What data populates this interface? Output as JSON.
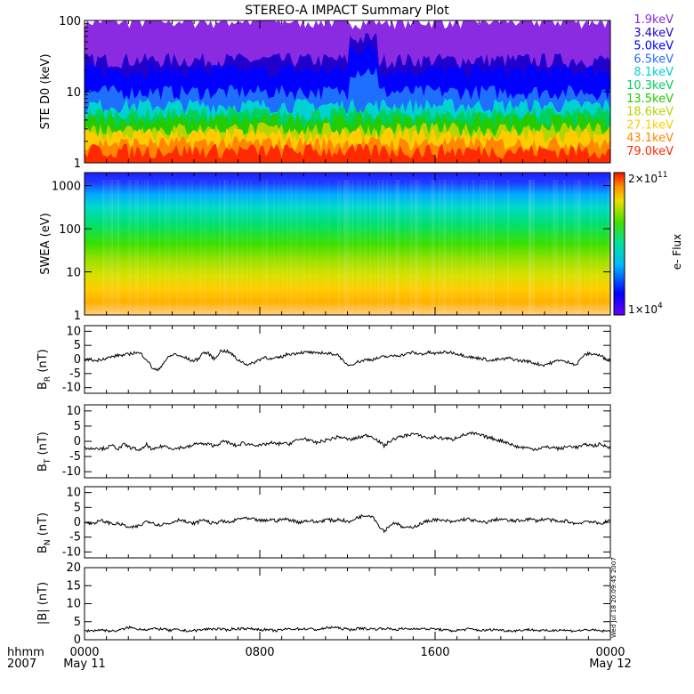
{
  "title": "STEREO-A IMPACT Summary Plot",
  "x_axis": {
    "row_label": "hhmm",
    "year_label": "2007",
    "ticks": [
      "0000",
      "0800",
      "1600",
      "0000"
    ],
    "date_labels": [
      "May 11",
      "May 12"
    ]
  },
  "timestamp": "Wed Jul 18 20:09:45 2007",
  "chart_data": [
    {
      "type": "line",
      "panel": "ste",
      "ylabel": "STE D0 (keV)",
      "yscale": "log",
      "ylim": [
        1,
        100
      ],
      "yticks": [
        "1",
        "10",
        "100"
      ],
      "legend_position": "right",
      "series": [
        {
          "name": "1.9keV",
          "color": "#8a2be2",
          "typical_level": 100
        },
        {
          "name": "3.4keV",
          "color": "#2200cc",
          "typical_level": 28
        },
        {
          "name": "5.0keV",
          "color": "#0000ff",
          "typical_level": 20
        },
        {
          "name": "6.5keV",
          "color": "#1f6fff",
          "typical_level": 10
        },
        {
          "name": "8.1keV",
          "color": "#00d2d2",
          "typical_level": 6.5
        },
        {
          "name": "10.3keV",
          "color": "#00d060",
          "typical_level": 5
        },
        {
          "name": "13.5keV",
          "color": "#22cc00",
          "typical_level": 4
        },
        {
          "name": "18.6keV",
          "color": "#b5d400",
          "typical_level": 3
        },
        {
          "name": "27.1keV",
          "color": "#ffcc00",
          "typical_level": 2.5
        },
        {
          "name": "43.1keV",
          "color": "#ff8800",
          "typical_level": 1.9
        },
        {
          "name": "79.0keV",
          "color": "#ff2a00",
          "typical_level": 1.5
        }
      ]
    },
    {
      "type": "heatmap",
      "panel": "swea",
      "ylabel": "SWEA (eV)",
      "yscale": "log",
      "ylim": [
        1,
        2000
      ],
      "yticks": [
        "1",
        "10",
        "100",
        "1000"
      ],
      "colorbar": {
        "label": "e- Flux",
        "max_mantissa": "2×10",
        "max_exp": "11",
        "min_mantissa": "1×10",
        "min_exp": "4"
      }
    },
    {
      "type": "line",
      "panel": "br",
      "ylabel_main": "B",
      "ylabel_sub": "R",
      "ylabel_unit": " (nT)",
      "ylim": [
        -12,
        12
      ],
      "yticks": [
        "10",
        "5",
        "0",
        "-5",
        "-10"
      ],
      "ytick_values": [
        10,
        5,
        0,
        -5,
        -10
      ],
      "values": [
        0,
        0,
        -0.5,
        0.2,
        0.5,
        1,
        1.5,
        1.5,
        2,
        2.5,
        2,
        0,
        -3,
        -4,
        -1,
        1,
        2,
        1,
        0.5,
        -0.5,
        0,
        2.5,
        2,
        0,
        3,
        3,
        2,
        0,
        -1,
        -2,
        -1,
        0,
        1,
        0,
        0.5,
        1,
        2,
        2,
        2.5,
        2.5,
        2.5,
        2,
        2.5,
        2,
        2,
        1.5,
        -1.5,
        -2,
        -1,
        -0.5,
        0,
        0,
        0.5,
        1,
        1,
        1.5,
        1.5,
        2,
        2.5,
        2,
        2,
        2.5,
        2,
        2.5,
        2.5,
        2.5,
        2,
        1.5,
        1,
        0.5,
        0.5,
        0,
        -0.5,
        0,
        0,
        0.5,
        0,
        -0.5,
        -0.5,
        -1,
        -1.5,
        -2,
        -1.5,
        -1,
        0,
        -1,
        -1,
        -2,
        1,
        2,
        2,
        1.5,
        0.5,
        -0.5
      ]
    },
    {
      "type": "line",
      "panel": "bt",
      "ylabel_main": "B",
      "ylabel_sub": "T",
      "ylabel_unit": " (nT)",
      "ylim": [
        -12,
        12
      ],
      "yticks": [
        "10",
        "5",
        "0",
        "-5",
        "-10"
      ],
      "ytick_values": [
        10,
        5,
        0,
        -5,
        -10
      ],
      "values": [
        -2,
        -2.5,
        -2,
        -2.5,
        -2,
        -1.5,
        -2.5,
        -1,
        -2,
        -2.5,
        -3,
        -1,
        -3,
        -2,
        -1.5,
        -2,
        -2.5,
        -2,
        -2,
        -1.5,
        -0.5,
        -1,
        -1,
        -1.5,
        -0.5,
        0,
        -1,
        -1.5,
        -0.5,
        -1,
        -1,
        -1.5,
        -1,
        -0.5,
        -1,
        -0.5,
        -1,
        0,
        0.5,
        1,
        0,
        -0.5,
        0,
        0.5,
        1,
        1.5,
        1,
        0.5,
        1,
        1.5,
        2,
        1.5,
        0,
        -1.5,
        0,
        1,
        1.5,
        2,
        2.5,
        2,
        1.5,
        1,
        1.5,
        1,
        1,
        0.5,
        1.5,
        2,
        2.5,
        2.5,
        2,
        1.5,
        1,
        0.5,
        0,
        -0.5,
        -1.5,
        -2,
        -2,
        -2.5,
        -2.5,
        -2,
        -2,
        -2,
        -2.5,
        -2,
        -1.5,
        -2,
        -1.5,
        -1,
        -1.5,
        -1,
        -1.5,
        -2
      ]
    },
    {
      "type": "line",
      "panel": "bn",
      "ylabel_main": "B",
      "ylabel_sub": "N",
      "ylabel_unit": " (nT)",
      "ylim": [
        -12,
        12
      ],
      "yticks": [
        "10",
        "5",
        "0",
        "-5",
        "-10"
      ],
      "ytick_values": [
        10,
        5,
        0,
        -5,
        -10
      ],
      "values": [
        0,
        -0.5,
        0,
        0.5,
        0,
        -0.5,
        -0.5,
        -1,
        -2,
        -1.5,
        -1,
        0.5,
        0,
        -1,
        -0.5,
        -0.5,
        0.5,
        1,
        0,
        -0.5,
        0,
        1,
        0,
        -0.5,
        0.5,
        0,
        0,
        1,
        1.5,
        1,
        1,
        0.5,
        0.5,
        1,
        0.5,
        1,
        1,
        0.5,
        0,
        0.5,
        0.5,
        0,
        0.5,
        1,
        0.5,
        1,
        0.5,
        0,
        1.5,
        2,
        2.5,
        2,
        -1,
        -3,
        -1,
        0,
        -1.5,
        -2,
        -1.5,
        -1,
        0,
        0.5,
        1,
        0.5,
        0.5,
        0,
        0.5,
        1,
        1,
        0.5,
        0,
        0,
        0.5,
        1,
        1,
        0.5,
        0.5,
        0.5,
        1,
        1,
        0.5,
        1,
        1,
        0.5,
        0,
        0.5,
        0,
        -0.5,
        0,
        0.5,
        0,
        -0.5,
        0,
        0.5
      ]
    },
    {
      "type": "line",
      "panel": "bmag",
      "ylabel": "|B| (nT)",
      "ylim": [
        0,
        20
      ],
      "yticks": [
        "20",
        "15",
        "10",
        "5",
        "0"
      ],
      "ytick_values": [
        20,
        15,
        10,
        5,
        0
      ],
      "values": [
        2.5,
        2.5,
        2.6,
        2.8,
        2.5,
        2.4,
        2.6,
        3,
        3.5,
        3,
        3,
        2.8,
        3,
        3,
        3,
        2.5,
        2.8,
        2.6,
        2.5,
        2.5,
        2.6,
        2.8,
        3,
        3,
        3,
        2.6,
        3,
        3,
        3.2,
        3,
        3,
        2.8,
        2.8,
        2.6,
        2.5,
        2.8,
        3,
        3,
        3,
        3,
        3,
        2.8,
        3,
        3.3,
        3.5,
        3.2,
        3,
        2.8,
        3,
        3.2,
        3,
        3,
        3,
        3.2,
        3,
        2.8,
        3,
        3,
        3,
        3.2,
        3,
        3,
        3,
        2.8,
        2.6,
        2.5,
        2.6,
        2.8,
        3,
        2.8,
        2.6,
        2.6,
        2.8,
        2.8,
        2.6,
        2.5,
        2.5,
        2.6,
        2.8,
        2.8,
        2.6,
        2.5,
        2.5,
        2.6,
        2.8,
        2.6,
        2.5,
        2.5,
        2.6,
        2.8,
        2.6,
        2.5,
        2.4,
        2.4
      ]
    }
  ]
}
